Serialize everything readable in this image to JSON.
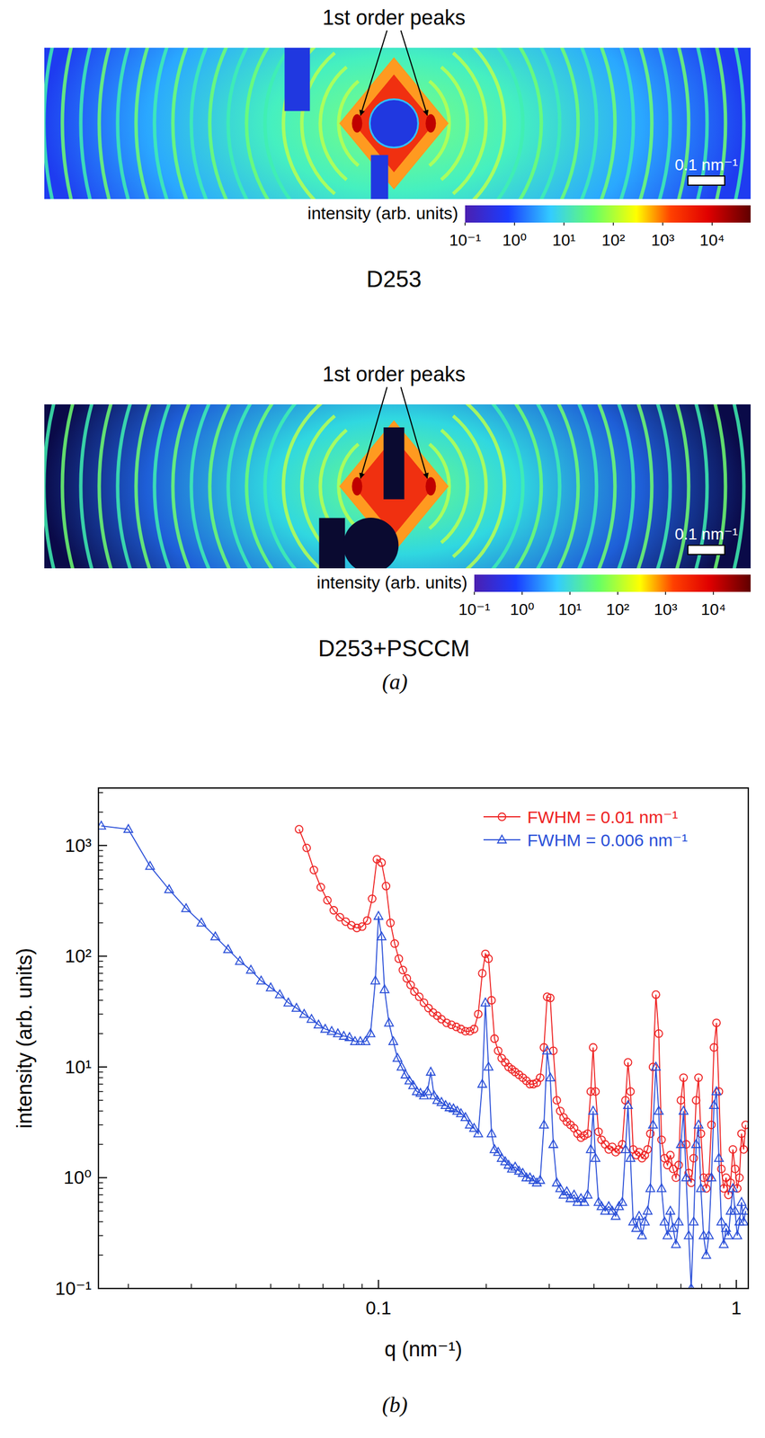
{
  "chart_data": [
    {
      "type": "image",
      "title": "D253",
      "annotations": [
        "1st order peaks"
      ],
      "scale_bar": {
        "value": 0.1,
        "label": "0.1 nm⁻¹"
      },
      "colorbar": {
        "label": "intensity (arb. units)",
        "range": [
          0.1,
          60000
        ],
        "log": true,
        "ticks": [
          {
            "value": 0.1,
            "label": "10⁻¹"
          },
          {
            "value": 1,
            "label": "10⁰"
          },
          {
            "value": 10,
            "label": "10¹"
          },
          {
            "value": 100,
            "label": "10²"
          },
          {
            "value": 1000,
            "label": "10³"
          },
          {
            "value": 10000,
            "label": "10⁴"
          }
        ]
      }
    },
    {
      "type": "image",
      "title": "D253+PSCCM",
      "annotations": [
        "1st order peaks"
      ],
      "scale_bar": {
        "value": 0.1,
        "label": "0.1 nm⁻¹"
      },
      "colorbar": {
        "label": "intensity (arb. units)",
        "range": [
          0.1,
          60000
        ],
        "log": true,
        "ticks": [
          {
            "value": 0.1,
            "label": "10⁻¹"
          },
          {
            "value": 1,
            "label": "10⁰"
          },
          {
            "value": 10,
            "label": "10¹"
          },
          {
            "value": 100,
            "label": "10²"
          },
          {
            "value": 1000,
            "label": "10³"
          },
          {
            "value": 10000,
            "label": "10⁴"
          }
        ]
      }
    },
    {
      "type": "line",
      "x_label": "q (nm⁻¹)",
      "y_label": "intensity (arb. units)",
      "log": true,
      "xlim": [
        0.0165,
        1.08
      ],
      "ylim": [
        0.1,
        3300
      ],
      "xticks": [
        0.1,
        1
      ],
      "yticks": [
        {
          "value": 0.1,
          "label": "10⁻¹"
        },
        {
          "value": 1,
          "label": "10⁰"
        },
        {
          "value": 10,
          "label": "10¹"
        },
        {
          "value": 100,
          "label": "10²"
        },
        {
          "value": 1000,
          "label": "10³"
        }
      ],
      "legend": "top-right",
      "series": [
        {
          "name": "FWHM = 0.01 nm⁻¹",
          "color": "#ee2222",
          "marker": "circle",
          "x": [
            0.06,
            0.063,
            0.066,
            0.069,
            0.072,
            0.075,
            0.078,
            0.081,
            0.084,
            0.087,
            0.09,
            0.093,
            0.096,
            0.099,
            0.102,
            0.105,
            0.108,
            0.111,
            0.114,
            0.117,
            0.12,
            0.123,
            0.126,
            0.13,
            0.134,
            0.138,
            0.142,
            0.146,
            0.15,
            0.155,
            0.16,
            0.165,
            0.17,
            0.175,
            0.18,
            0.185,
            0.19,
            0.195,
            0.199,
            0.203,
            0.207,
            0.211,
            0.216,
            0.221,
            0.226,
            0.231,
            0.236,
            0.241,
            0.247,
            0.253,
            0.259,
            0.265,
            0.271,
            0.277,
            0.283,
            0.29,
            0.296,
            0.302,
            0.308,
            0.315,
            0.322,
            0.329,
            0.336,
            0.344,
            0.352,
            0.36,
            0.368,
            0.376,
            0.384,
            0.392,
            0.398,
            0.404,
            0.412,
            0.42,
            0.43,
            0.44,
            0.45,
            0.46,
            0.47,
            0.48,
            0.49,
            0.498,
            0.506,
            0.515,
            0.525,
            0.535,
            0.545,
            0.555,
            0.565,
            0.575,
            0.585,
            0.596,
            0.607,
            0.618,
            0.63,
            0.642,
            0.654,
            0.666,
            0.678,
            0.69,
            0.7,
            0.712,
            0.724,
            0.736,
            0.748,
            0.76,
            0.772,
            0.784,
            0.796,
            0.81,
            0.824,
            0.838,
            0.852,
            0.866,
            0.88,
            0.894,
            0.908,
            0.922,
            0.936,
            0.95,
            0.964,
            0.978,
            0.992,
            1.006,
            1.02,
            1.034,
            1.048,
            1.062
          ],
          "values": [
            1400,
            950,
            600,
            420,
            320,
            260,
            225,
            205,
            190,
            180,
            185,
            210,
            330,
            750,
            700,
            430,
            200,
            130,
            95,
            75,
            63,
            55,
            48,
            43,
            38,
            34,
            31,
            29,
            27,
            25,
            24,
            23,
            22,
            21,
            21,
            22,
            30,
            70,
            105,
            95,
            40,
            18,
            14,
            12,
            11,
            10,
            9.5,
            9,
            8.5,
            8,
            7.5,
            7,
            7,
            7.2,
            8,
            15,
            43,
            42,
            14,
            5,
            4,
            3.5,
            3.2,
            3,
            2.8,
            2.5,
            2.3,
            2.4,
            2.5,
            6,
            15,
            6,
            2.6,
            2.2,
            2,
            1.8,
            1.9,
            1.7,
            1.8,
            2,
            5,
            11,
            6,
            1.8,
            1.6,
            1.7,
            1.5,
            1.6,
            1.8,
            2.5,
            10,
            45,
            20,
            2.2,
            1.5,
            1.3,
            1.6,
            1.2,
            1.0,
            1.3,
            5,
            8,
            2,
            1.1,
            0.9,
            1.5,
            5,
            8,
            2.5,
            1.0,
            0.8,
            1.0,
            3,
            15,
            25,
            6,
            1.2,
            0.8,
            1,
            0.7,
            0.9,
            1.8,
            1.2,
            0.8,
            1.0,
            2.5,
            1.8,
            3
          ]
        },
        {
          "name": "FWHM = 0.006 nm⁻¹",
          "color": "#2a4fd8",
          "marker": "triangle",
          "x": [
            0.0168,
            0.02,
            0.023,
            0.026,
            0.029,
            0.032,
            0.035,
            0.038,
            0.041,
            0.044,
            0.047,
            0.05,
            0.053,
            0.056,
            0.059,
            0.062,
            0.065,
            0.068,
            0.071,
            0.074,
            0.077,
            0.08,
            0.083,
            0.086,
            0.089,
            0.092,
            0.095,
            0.098,
            0.1,
            0.102,
            0.104,
            0.107,
            0.11,
            0.113,
            0.116,
            0.119,
            0.122,
            0.125,
            0.128,
            0.131,
            0.134,
            0.137,
            0.14,
            0.143,
            0.146,
            0.15,
            0.154,
            0.158,
            0.162,
            0.166,
            0.17,
            0.175,
            0.18,
            0.185,
            0.19,
            0.195,
            0.199,
            0.203,
            0.207,
            0.211,
            0.216,
            0.221,
            0.226,
            0.231,
            0.236,
            0.241,
            0.247,
            0.253,
            0.259,
            0.265,
            0.271,
            0.277,
            0.283,
            0.29,
            0.296,
            0.302,
            0.308,
            0.315,
            0.322,
            0.329,
            0.336,
            0.344,
            0.352,
            0.36,
            0.368,
            0.376,
            0.384,
            0.392,
            0.398,
            0.404,
            0.412,
            0.42,
            0.43,
            0.44,
            0.45,
            0.46,
            0.47,
            0.48,
            0.49,
            0.498,
            0.506,
            0.515,
            0.525,
            0.535,
            0.545,
            0.555,
            0.565,
            0.575,
            0.585,
            0.596,
            0.607,
            0.618,
            0.63,
            0.642,
            0.654,
            0.666,
            0.678,
            0.69,
            0.7,
            0.712,
            0.724,
            0.736,
            0.748,
            0.76,
            0.772,
            0.784,
            0.796,
            0.81,
            0.824,
            0.838,
            0.852,
            0.866,
            0.88,
            0.894,
            0.908,
            0.922,
            0.936,
            0.95,
            0.964,
            0.978,
            0.992,
            1.006,
            1.02,
            1.034,
            1.048,
            1.062
          ],
          "values": [
            1500,
            1400,
            650,
            400,
            270,
            200,
            150,
            115,
            90,
            75,
            60,
            52,
            45,
            38,
            34,
            30,
            27,
            24,
            22,
            21,
            20,
            19,
            18.5,
            17,
            17,
            17,
            20,
            60,
            230,
            150,
            50,
            25,
            17,
            12,
            10,
            8.5,
            7.5,
            6.8,
            6,
            5.8,
            5.5,
            6,
            9,
            5.5,
            5,
            4.8,
            4.5,
            4.3,
            4.2,
            4,
            3.8,
            3.5,
            3,
            2.8,
            2.5,
            7,
            38,
            10,
            2.5,
            1.8,
            1.7,
            1.5,
            1.4,
            1.3,
            1.2,
            1.25,
            1.15,
            1.1,
            1.0,
            1.0,
            0.95,
            0.9,
            0.95,
            3,
            14,
            8,
            2,
            0.9,
            0.8,
            0.7,
            0.75,
            0.65,
            0.7,
            0.6,
            0.65,
            0.6,
            0.7,
            1.8,
            4,
            1.5,
            0.6,
            0.55,
            0.5,
            0.55,
            0.5,
            0.45,
            0.55,
            0.6,
            1.8,
            4.5,
            1.5,
            0.4,
            0.35,
            0.45,
            0.3,
            0.4,
            0.5,
            0.8,
            3,
            10,
            4,
            0.8,
            0.4,
            0.3,
            0.5,
            0.35,
            0.25,
            0.4,
            2,
            4,
            1,
            0.3,
            0.1,
            0.4,
            2,
            3,
            0.8,
            0.3,
            0.2,
            0.3,
            1,
            4.5,
            6,
            1.5,
            0.4,
            0.25,
            0.35,
            0.3,
            0.5,
            0.8,
            0.5,
            0.3,
            0.4,
            0.6,
            0.4,
            0.5
          ]
        }
      ]
    }
  ],
  "panel_labels": [
    "(a)",
    "(b)"
  ]
}
